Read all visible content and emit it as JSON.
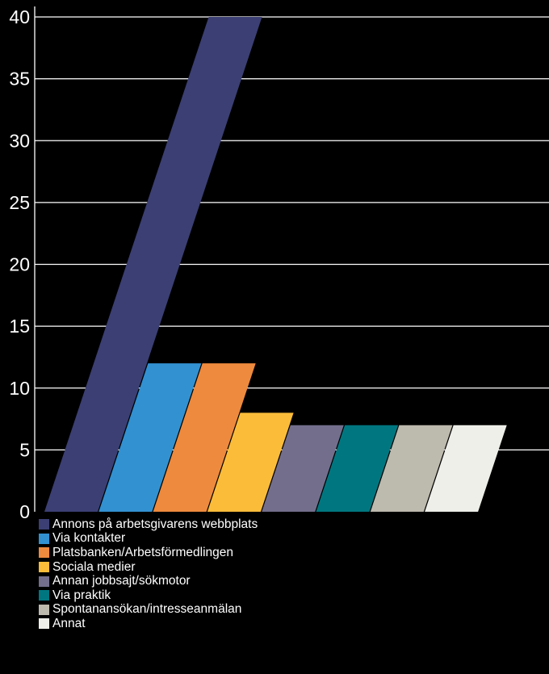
{
  "chart_data": {
    "type": "bar",
    "title": "",
    "xlabel": "",
    "ylabel": "",
    "ylim": [
      0,
      40
    ],
    "yticks": [
      "0",
      "5",
      "10",
      "15",
      "20",
      "25",
      "30",
      "35",
      "40"
    ],
    "grid": true,
    "legend_position": "bottom-left",
    "categories": [
      "Annons på arbetsgivarens webbplats",
      "Via kontakter",
      "Platsbanken/Arbetsförmedlingen",
      "Sociala medier",
      "Annan jobbsajt/sökmotor",
      "Via praktik",
      "Spontanansökan/intresseanmälan",
      "Annat"
    ],
    "values": [
      40,
      12,
      12,
      8,
      7,
      7,
      7,
      7
    ],
    "colors": [
      "#3b3f73",
      "#3291d1",
      "#ee8a3d",
      "#fbbc3a",
      "#736e8c",
      "#007780",
      "#bdbaae",
      "#efefea"
    ]
  },
  "background_color": "#000000",
  "text_color": "#ffffff"
}
